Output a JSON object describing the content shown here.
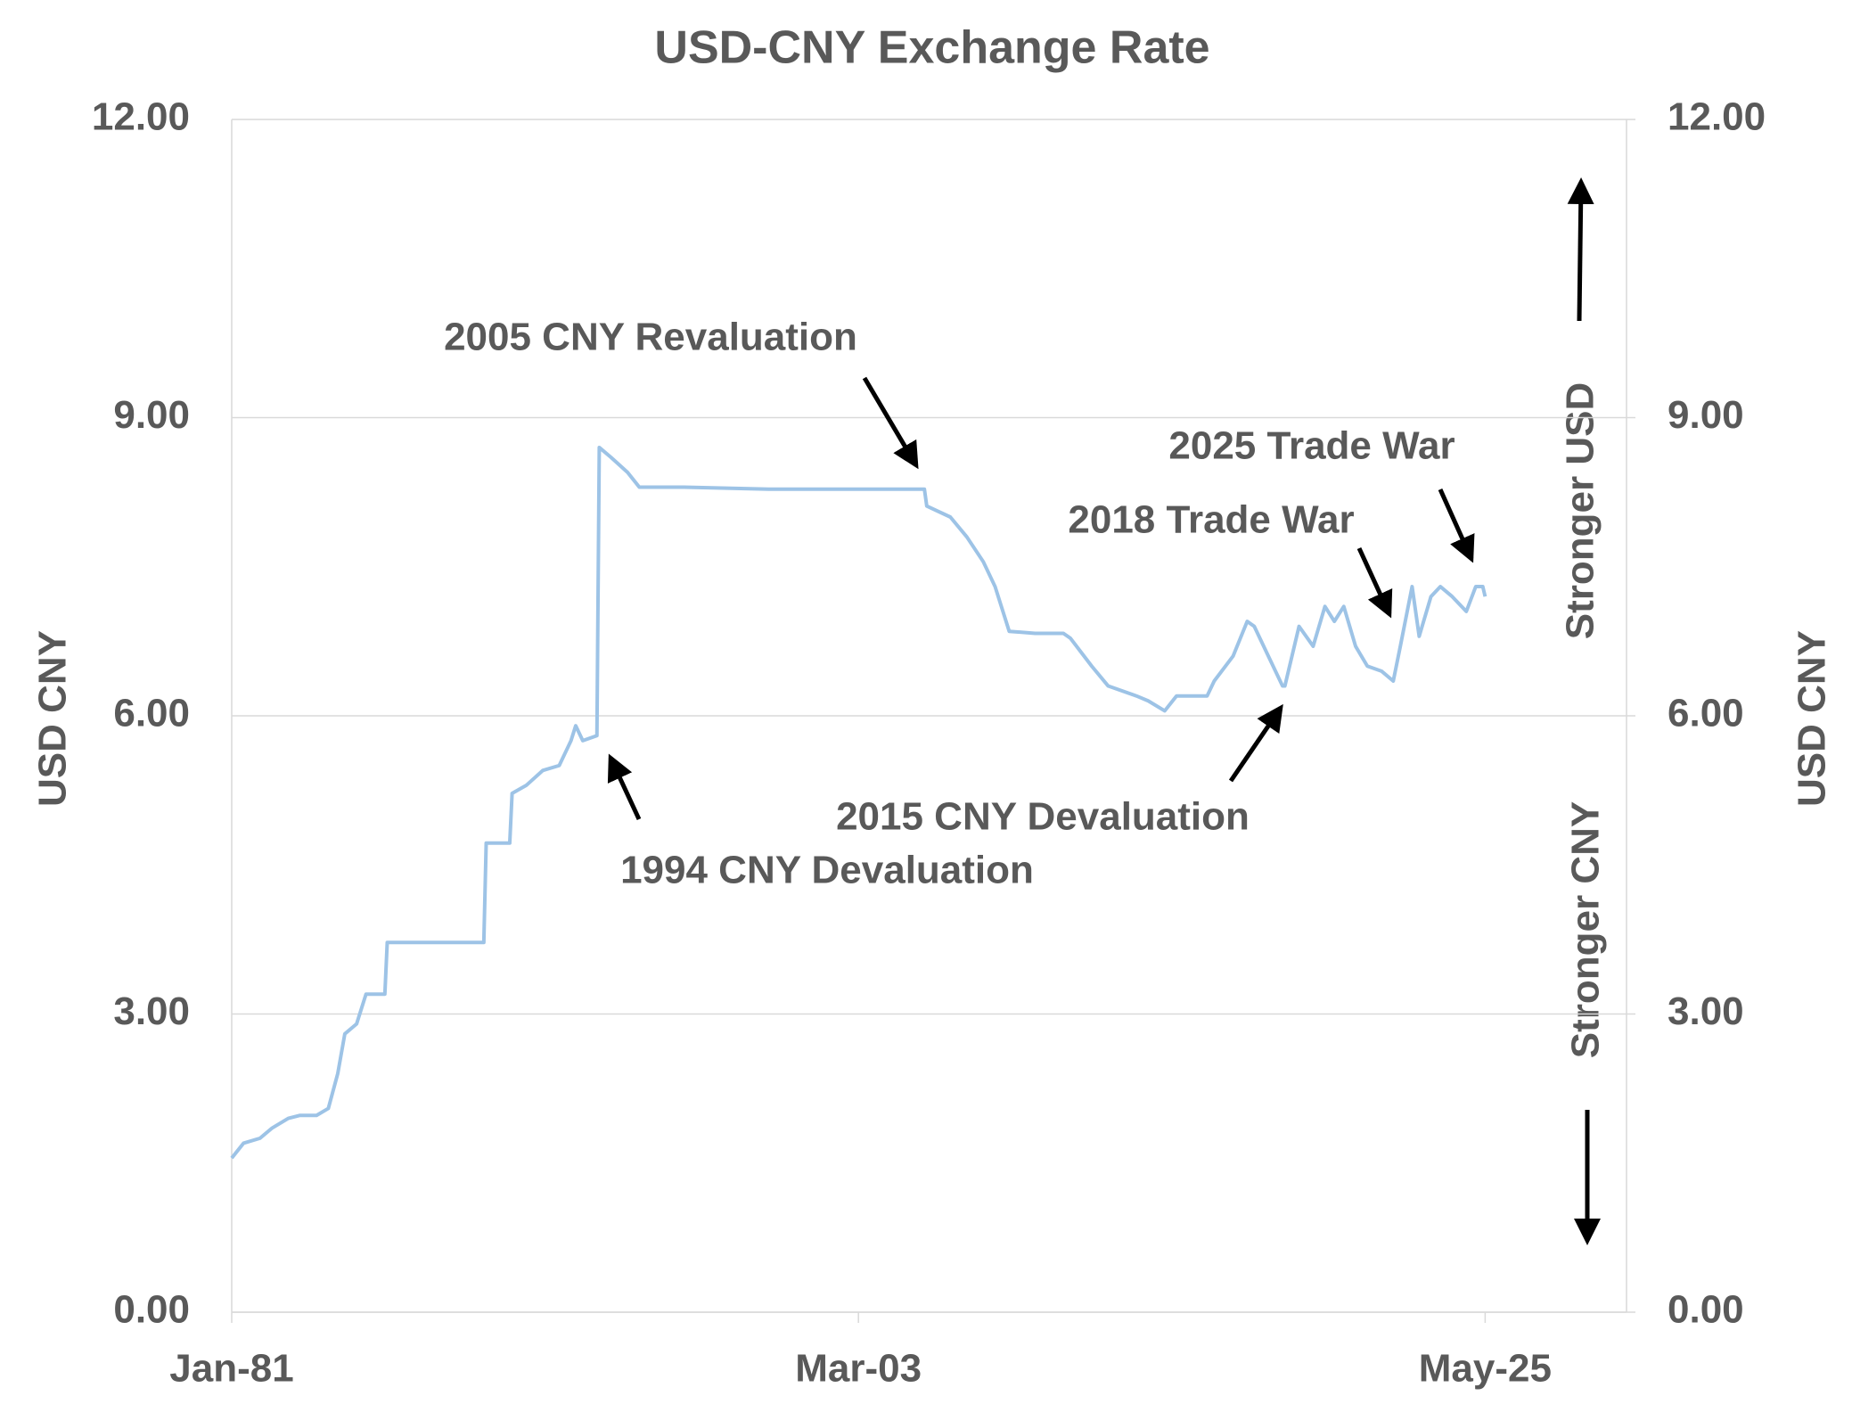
{
  "chart_data": {
    "type": "line",
    "title": "USD-CNY Exchange Rate",
    "y_label": "USD  CNY",
    "y2_label": "USD  CNY",
    "annotations": [
      "2005 CNY Revaluation",
      "1994  CNY Devaluation",
      "2015 CNY Devaluation",
      "2018 Trade War",
      "2025 Trade War",
      "Stronger  USD",
      "Stronger  CNY"
    ],
    "x": [
      "1981-01",
      "1981-06",
      "1982-01",
      "1982-06",
      "1983-01",
      "1983-06",
      "1984-01",
      "1984-06",
      "1984-10",
      "1985-01",
      "1985-06",
      "1985-10",
      "1986-06",
      "1986-07",
      "1989-12",
      "1990-01",
      "1990-11",
      "1990-12",
      "1991-06",
      "1992-01",
      "1992-08",
      "1993-01",
      "1993-03",
      "1993-06",
      "1993-12",
      "1994-01",
      "1994-06",
      "1995-01",
      "1995-06",
      "1997-01",
      "2000-01",
      "2003-01",
      "2005-07",
      "2005-08",
      "2006-06",
      "2007-01",
      "2007-08",
      "2008-01",
      "2008-07",
      "2009-06",
      "2010-06",
      "2010-09",
      "2011-06",
      "2012-01",
      "2013-01",
      "2013-06",
      "2014-01",
      "2014-06",
      "2015-07",
      "2015-10",
      "2016-06",
      "2016-12",
      "2017-03",
      "2017-09",
      "2018-03",
      "2018-04",
      "2018-10",
      "2019-04",
      "2019-09",
      "2020-01",
      "2020-05",
      "2020-10",
      "2021-03",
      "2021-09",
      "2022-02",
      "2022-05",
      "2022-10",
      "2023-01",
      "2023-06",
      "2023-10",
      "2024-03",
      "2024-09",
      "2025-01",
      "2025-04",
      "2025-05"
    ],
    "series": [
      {
        "name": "USD CNY",
        "color": "#9dc3e6",
        "values": [
          1.55,
          1.7,
          1.75,
          1.85,
          1.95,
          1.98,
          1.98,
          2.05,
          2.4,
          2.8,
          2.9,
          3.2,
          3.2,
          3.72,
          3.72,
          4.72,
          4.72,
          5.22,
          5.3,
          5.45,
          5.5,
          5.75,
          5.9,
          5.75,
          5.8,
          8.7,
          8.6,
          8.45,
          8.3,
          8.3,
          8.28,
          8.28,
          8.28,
          8.11,
          8.0,
          7.8,
          7.55,
          7.3,
          6.85,
          6.83,
          6.83,
          6.78,
          6.5,
          6.3,
          6.2,
          6.15,
          6.05,
          6.2,
          6.2,
          6.35,
          6.6,
          6.95,
          6.9,
          6.6,
          6.3,
          6.3,
          6.9,
          6.7,
          7.1,
          6.95,
          7.1,
          6.7,
          6.5,
          6.45,
          6.35,
          6.7,
          7.3,
          6.8,
          7.2,
          7.3,
          7.2,
          7.05,
          7.3,
          7.3,
          7.2
        ]
      }
    ],
    "xlim": [
      "1981-01",
      "2030-05"
    ],
    "xticks": [
      {
        "value": "1981-01",
        "label": "Jan-81"
      },
      {
        "value": "2003-03",
        "label": "Mar-03"
      },
      {
        "value": "2025-05",
        "label": "May-25"
      }
    ],
    "ylim": [
      0,
      12
    ],
    "yticks": [
      {
        "value": 0,
        "label": "0.00"
      },
      {
        "value": 3,
        "label": "3.00"
      },
      {
        "value": 6,
        "label": "6.00"
      },
      {
        "value": 9,
        "label": "9.00"
      },
      {
        "value": 12,
        "label": "12.00"
      }
    ],
    "y2lim": [
      0,
      12
    ],
    "y2ticks": [
      {
        "value": 0,
        "label": "0.00"
      },
      {
        "value": 3,
        "label": "3.00"
      },
      {
        "value": 6,
        "label": "6.00"
      },
      {
        "value": 9,
        "label": "9.00"
      },
      {
        "value": 12,
        "label": "12.00"
      }
    ],
    "grid": true
  }
}
